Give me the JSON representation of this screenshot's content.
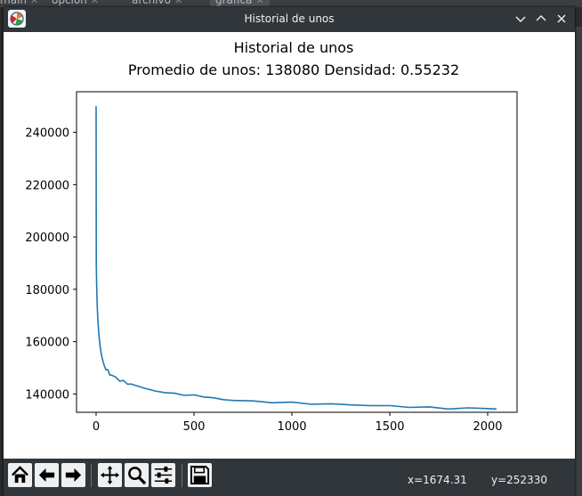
{
  "ide": {
    "tabs": [
      "main",
      "opcion",
      "archivo",
      "grafica"
    ]
  },
  "window": {
    "title": "Historial de unos",
    "buttons": [
      "minimize",
      "maximize",
      "close"
    ]
  },
  "toolbar": {
    "buttons": [
      "home-icon",
      "back-icon",
      "forward-icon",
      "pan-icon",
      "zoom-icon",
      "configure-icon",
      "save-icon"
    ],
    "coord_x": "x=1674.31",
    "coord_y": "y=252330"
  },
  "chart_data": {
    "type": "line",
    "title": "Historial de unos",
    "subtitle": "Promedio de unos: 138080 Densidad: 0.55232",
    "xlabel": "",
    "ylabel": "",
    "xlim": [
      -100,
      2150
    ],
    "ylim": [
      133000,
      255500
    ],
    "xticks": [
      0,
      500,
      1000,
      1500,
      2000
    ],
    "yticks": [
      140000,
      160000,
      180000,
      200000,
      220000,
      240000
    ],
    "grid": false,
    "color": "#1f77b4",
    "series": [
      {
        "x": [
          0,
          1,
          3,
          6,
          10,
          15,
          20,
          25,
          30,
          40,
          50,
          60,
          70,
          80,
          100,
          120,
          140,
          160,
          180,
          200,
          250,
          300,
          350,
          400,
          450,
          500,
          550,
          600,
          650,
          700,
          800,
          900,
          1000,
          1100,
          1200,
          1300,
          1400,
          1500,
          1600,
          1700,
          1800,
          1900,
          2000,
          2045
        ],
        "y": [
          250000,
          190000,
          180000,
          173000,
          167000,
          162000,
          158500,
          156000,
          154000,
          151000,
          149500,
          149000,
          147500,
          147000,
          146500,
          145000,
          145000,
          144000,
          143500,
          143500,
          142000,
          141200,
          140600,
          140100,
          139700,
          139400,
          139100,
          138400,
          137900,
          137600,
          137200,
          136900,
          136600,
          136300,
          136100,
          135900,
          135600,
          135400,
          135100,
          134800,
          134500,
          134500,
          134500,
          134300
        ]
      }
    ]
  }
}
